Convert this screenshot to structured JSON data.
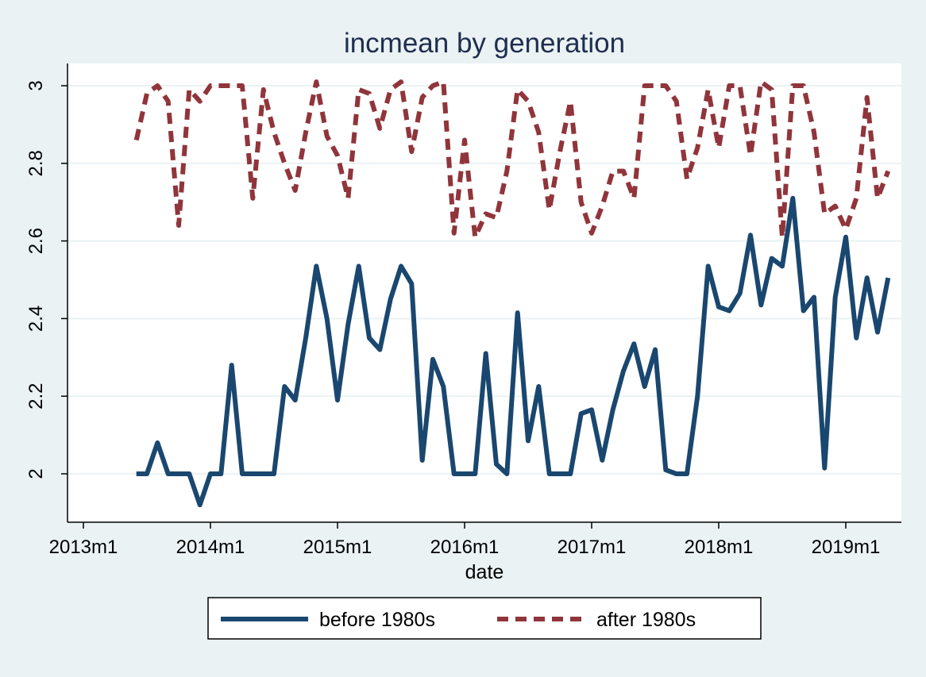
{
  "chart_data": {
    "type": "line",
    "title": "incmean by generation",
    "xlabel": "date",
    "ylabel": "",
    "x_axis_type": "monthly-date",
    "xlim": [
      "2013-01",
      "2019-05"
    ],
    "ylim": [
      1.92,
      3.05
    ],
    "x_ticks": [
      "2013m1",
      "2014m1",
      "2015m1",
      "2016m1",
      "2017m1",
      "2018m1",
      "2019m1"
    ],
    "y_ticks": [
      "2",
      "2.2",
      "2.4",
      "2.6",
      "2.8",
      "3"
    ],
    "grid": "horizontal",
    "legend_position": "bottom",
    "x": [
      "2013m6",
      "2013m7",
      "2013m8",
      "2013m9",
      "2013m10",
      "2013m11",
      "2013m12",
      "2014m1",
      "2014m2",
      "2014m3",
      "2014m4",
      "2014m5",
      "2014m6",
      "2014m7",
      "2014m8",
      "2014m9",
      "2014m10",
      "2014m11",
      "2014m12",
      "2015m1",
      "2015m2",
      "2015m3",
      "2015m4",
      "2015m5",
      "2015m6",
      "2015m7",
      "2015m8",
      "2015m9",
      "2015m10",
      "2015m11",
      "2015m12",
      "2016m1",
      "2016m2",
      "2016m3",
      "2016m4",
      "2016m5",
      "2016m6",
      "2016m7",
      "2016m8",
      "2016m9",
      "2016m10",
      "2016m11",
      "2016m12",
      "2017m1",
      "2017m2",
      "2017m3",
      "2017m4",
      "2017m5",
      "2017m6",
      "2017m7",
      "2017m8",
      "2017m9",
      "2017m10",
      "2017m11",
      "2017m12",
      "2018m1",
      "2018m2",
      "2018m3",
      "2018m4",
      "2018m5",
      "2018m6",
      "2018m7",
      "2018m8",
      "2018m9",
      "2018m10",
      "2018m11",
      "2018m12",
      "2019m1",
      "2019m2",
      "2019m3",
      "2019m4",
      "2019m5"
    ],
    "series": [
      {
        "name": "before 1980s",
        "color": "#1a476f",
        "dash": "solid",
        "values": [
          2.0,
          2.0,
          2.08,
          2.0,
          2.0,
          2.0,
          1.92,
          2.0,
          2.0,
          2.28,
          2.0,
          2.0,
          2.0,
          2.0,
          2.225,
          2.19,
          2.35,
          2.535,
          2.4,
          2.19,
          2.385,
          2.535,
          2.35,
          2.32,
          2.45,
          2.535,
          2.49,
          2.035,
          2.295,
          2.225,
          2.0,
          2.0,
          2.0,
          2.31,
          2.025,
          2.0,
          2.415,
          2.085,
          2.225,
          2.0,
          2.0,
          2.0,
          2.155,
          2.165,
          2.035,
          2.165,
          2.265,
          2.335,
          2.225,
          2.32,
          2.01,
          2.0,
          2.0,
          2.2,
          2.535,
          2.43,
          2.42,
          2.465,
          2.615,
          2.435,
          2.555,
          2.535,
          2.71,
          2.42,
          2.455,
          2.015,
          2.455,
          2.61,
          2.35,
          2.505,
          2.365,
          2.505
        ]
      },
      {
        "name": "after 1980s",
        "color": "#90353b",
        "dash": "dashed",
        "values": [
          2.86,
          2.98,
          3.0,
          2.96,
          2.64,
          2.99,
          2.96,
          3.0,
          3.0,
          3.0,
          3.0,
          2.71,
          2.99,
          2.88,
          2.8,
          2.73,
          2.88,
          3.01,
          2.87,
          2.82,
          2.71,
          2.99,
          2.98,
          2.89,
          2.99,
          3.01,
          2.83,
          2.97,
          3.0,
          3.01,
          2.62,
          2.86,
          2.61,
          2.67,
          2.66,
          2.78,
          2.99,
          2.96,
          2.88,
          2.68,
          2.83,
          2.96,
          2.7,
          2.62,
          2.69,
          2.78,
          2.78,
          2.71,
          3.0,
          3.0,
          3.0,
          2.96,
          2.76,
          2.84,
          2.99,
          2.84,
          3.0,
          3.0,
          2.82,
          3.01,
          2.99,
          2.61,
          3.0,
          3.0,
          2.88,
          2.67,
          2.69,
          2.63,
          2.71,
          2.97,
          2.71,
          2.78
        ]
      }
    ]
  }
}
